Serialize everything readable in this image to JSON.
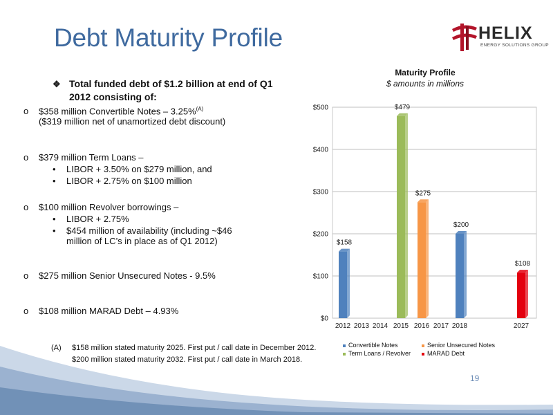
{
  "title": "Debt Maturity Profile",
  "logo": {
    "name": "HELIX",
    "sub": "ENERGY SOLUTIONS GROUP"
  },
  "main_bullet": "Total funded debt of $1.2 billion at end of Q1 2012 consisting of:",
  "items": [
    {
      "lines": [
        "$358 million Convertible Notes – 3.25%",
        "($319 million net of unamortized debt discount)"
      ],
      "sup": "(A)"
    },
    {
      "lines": [
        "$379 million Term Loans –"
      ],
      "subs": [
        "LIBOR + 3.50% on $279 million, and",
        "LIBOR + 2.75% on $100 million"
      ]
    },
    {
      "lines": [
        "$100 million Revolver borrowings –"
      ],
      "subs": [
        "LIBOR + 2.75%",
        "$454 million of availability (including ~$46 million of LC’s in place as of Q1 2012)"
      ]
    },
    {
      "lines": [
        "$275 million Senior Unsecured Notes - 9.5%"
      ]
    },
    {
      "lines": [
        "$108 million MARAD Debt – 4.93%"
      ]
    }
  ],
  "footnote": {
    "marker": "(A)",
    "lines": [
      "$158 million stated maturity 2025. First put / call date in December 2012.",
      "$200 million stated maturity 2032. First put / call date in March 2018."
    ]
  },
  "page_number": "19",
  "chart_data": {
    "type": "bar",
    "title": "Maturity Profile",
    "subtitle": "$ amounts in millions",
    "categories": [
      "2012",
      "2013",
      "2014",
      "2015",
      "2016",
      "2017",
      "2018",
      "2027"
    ],
    "series": [
      {
        "name": "Convertible Notes",
        "color": "#4f81bd",
        "values": [
          158,
          null,
          null,
          null,
          null,
          null,
          200,
          null
        ]
      },
      {
        "name": "Term Loans / Revolver",
        "color": "#9bbb59",
        "values": [
          null,
          null,
          null,
          479,
          null,
          null,
          null,
          null
        ]
      },
      {
        "name": "Senior Unsecured Notes",
        "color": "#f79646",
        "values": [
          null,
          null,
          null,
          null,
          275,
          null,
          null,
          null
        ]
      },
      {
        "name": "MARAD Debt",
        "color": "#e3000f",
        "values": [
          null,
          null,
          null,
          null,
          null,
          null,
          null,
          108
        ]
      }
    ],
    "data_labels": [
      "$158",
      "$479",
      "$275",
      "$200",
      "$108"
    ],
    "y_ticks": [
      "$0",
      "$100",
      "$200",
      "$300",
      "$400",
      "$500"
    ],
    "ylim": [
      0,
      500
    ],
    "grid": true,
    "legend_position": "bottom"
  }
}
